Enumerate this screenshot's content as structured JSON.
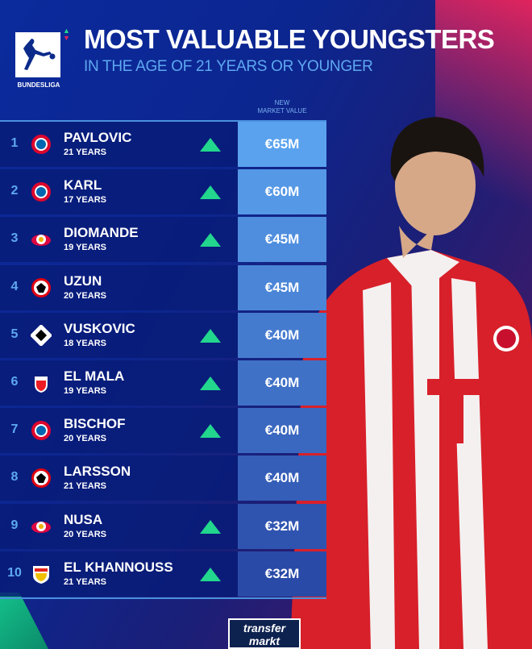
{
  "header": {
    "logo_text": "BUNDESLIGA",
    "title": "MOST VALUABLE YOUNGSTERS",
    "subtitle": "IN THE AGE OF 21 YEARS OR YOUNGER",
    "column_header_line1": "NEW",
    "column_header_line2": "MARKET VALUE"
  },
  "colors": {
    "accent_up": "#22d68e",
    "value_box_top": "#5aa2ee",
    "value_box_bottom": "#2a4aa8",
    "rank": "#5ea8f0"
  },
  "players": [
    {
      "rank": "1",
      "name": "PAVLOVIC",
      "age": "21 YEARS",
      "club": "bayern",
      "trend": "up",
      "value": "€65M"
    },
    {
      "rank": "2",
      "name": "KARL",
      "age": "17 YEARS",
      "club": "bayern",
      "trend": "up",
      "value": "€60M"
    },
    {
      "rank": "3",
      "name": "DIOMANDE",
      "age": "19 YEARS",
      "club": "leipzig",
      "trend": "up",
      "value": "€45M"
    },
    {
      "rank": "4",
      "name": "UZUN",
      "age": "20 YEARS",
      "club": "frankfurt",
      "trend": "none",
      "value": "€45M"
    },
    {
      "rank": "5",
      "name": "VUSKOVIC",
      "age": "18 YEARS",
      "club": "hamburg",
      "trend": "up",
      "value": "€40M"
    },
    {
      "rank": "6",
      "name": "EL MALA",
      "age": "19 YEARS",
      "club": "koeln",
      "trend": "up",
      "value": "€40M"
    },
    {
      "rank": "7",
      "name": "BISCHOF",
      "age": "20 YEARS",
      "club": "bayern",
      "trend": "up",
      "value": "€40M"
    },
    {
      "rank": "8",
      "name": "LARSSON",
      "age": "21 YEARS",
      "club": "frankfurt",
      "trend": "none",
      "value": "€40M"
    },
    {
      "rank": "9",
      "name": "NUSA",
      "age": "20 YEARS",
      "club": "leipzig",
      "trend": "up",
      "value": "€32M"
    },
    {
      "rank": "10",
      "name": "EL KHANNOUSS",
      "age": "21 YEARS",
      "club": "stuttgart",
      "trend": "up",
      "value": "€32M"
    }
  ],
  "footer": {
    "brand": "transfermarkt"
  }
}
